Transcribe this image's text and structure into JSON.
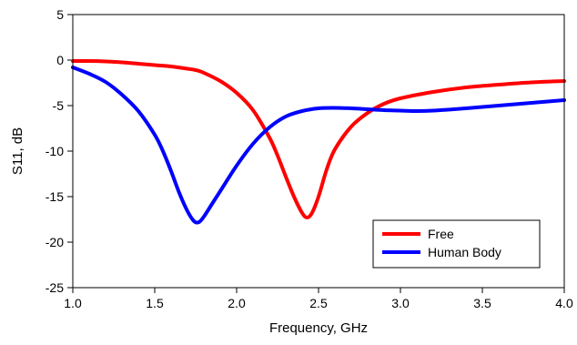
{
  "chart_data": {
    "type": "line",
    "title": "",
    "xlabel": "Frequency, GHz",
    "ylabel": "S11, dB",
    "xlim": [
      1.0,
      4.0
    ],
    "ylim": [
      -25,
      5
    ],
    "x_ticks": [
      1.0,
      1.5,
      2.0,
      2.5,
      3.0,
      3.5,
      4.0
    ],
    "x_tick_labels": [
      "1.0",
      "1.5",
      "2.0",
      "2.5",
      "3.0",
      "3.5",
      "4.0"
    ],
    "y_ticks": [
      5,
      0,
      -5,
      -10,
      -15,
      -20,
      -25
    ],
    "y_tick_labels": [
      "5",
      "0",
      "-5",
      "-10",
      "-15",
      "-20",
      "-25"
    ],
    "grid": false,
    "legend_position": "lower-right",
    "series": [
      {
        "name": "Free",
        "color": "#ff0000",
        "x": [
          1.0,
          1.1,
          1.2,
          1.3,
          1.4,
          1.5,
          1.6,
          1.7,
          1.75,
          1.8,
          1.9,
          2.0,
          2.1,
          2.2,
          2.25,
          2.3,
          2.35,
          2.4,
          2.43,
          2.46,
          2.5,
          2.55,
          2.6,
          2.7,
          2.8,
          2.9,
          3.0,
          3.2,
          3.4,
          3.6,
          3.8,
          4.0
        ],
        "y": [
          -0.1,
          -0.1,
          -0.15,
          -0.25,
          -0.4,
          -0.55,
          -0.7,
          -0.95,
          -1.1,
          -1.4,
          -2.3,
          -3.6,
          -5.5,
          -8.5,
          -10.5,
          -12.8,
          -15.0,
          -16.8,
          -17.3,
          -16.8,
          -15.0,
          -12.0,
          -9.8,
          -7.3,
          -5.8,
          -4.8,
          -4.2,
          -3.5,
          -3.0,
          -2.7,
          -2.45,
          -2.3
        ]
      },
      {
        "name": "Human Body",
        "color": "#0000ff",
        "x": [
          1.0,
          1.1,
          1.2,
          1.3,
          1.4,
          1.5,
          1.55,
          1.6,
          1.65,
          1.7,
          1.74,
          1.77,
          1.8,
          1.85,
          1.9,
          2.0,
          2.1,
          2.2,
          2.3,
          2.4,
          2.5,
          2.6,
          2.7,
          2.8,
          2.9,
          3.0,
          3.1,
          3.2,
          3.4,
          3.6,
          3.8,
          4.0
        ],
        "y": [
          -0.8,
          -1.5,
          -2.4,
          -3.8,
          -5.6,
          -8.2,
          -10.0,
          -12.2,
          -14.6,
          -16.6,
          -17.7,
          -17.8,
          -17.2,
          -15.8,
          -14.4,
          -11.6,
          -9.2,
          -7.4,
          -6.2,
          -5.6,
          -5.3,
          -5.25,
          -5.3,
          -5.4,
          -5.5,
          -5.55,
          -5.6,
          -5.55,
          -5.3,
          -5.0,
          -4.7,
          -4.4
        ]
      }
    ]
  }
}
